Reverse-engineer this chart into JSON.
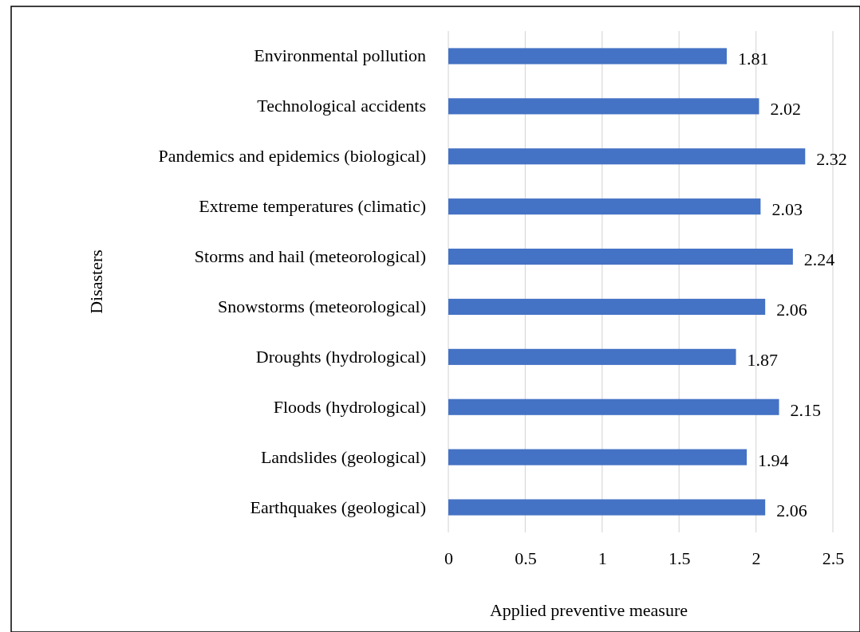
{
  "chart_data": {
    "type": "bar",
    "orientation": "horizontal",
    "xlabel": "Applied preventive measure",
    "ylabel": "Disasters",
    "categories": [
      "Environmental pollution",
      "Technological accidents",
      "Pandemics and epidemics (biological)",
      "Extreme temperatures (climatic)",
      "Storms and hail (meteorological)",
      "Snowstorms (meteorological)",
      "Droughts (hydrological)",
      "Floods (hydrological)",
      "Landslides (geological)",
      "Earthquakes (geological)"
    ],
    "values": [
      1.81,
      2.02,
      2.32,
      2.03,
      2.24,
      2.06,
      1.87,
      2.15,
      1.94,
      2.06
    ],
    "color": "#4472c4",
    "xlim": [
      0,
      2.5
    ],
    "xticks": [
      0,
      0.5,
      1,
      1.5,
      2,
      2.5
    ],
    "grid": "x",
    "data_labels": true
  }
}
